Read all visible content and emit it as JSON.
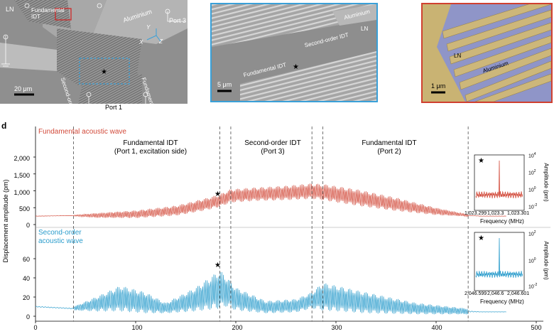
{
  "top_panels": {
    "sem_left": {
      "labels": {
        "ln": "LN",
        "fundamental_idt": "Fundamental\nIDT",
        "second_order_idt": "Second-order IDT",
        "fundamental_idt_right": "Fundamental IDT",
        "aluminium": "Aluminium",
        "port3": "Port 3",
        "port1": "Port 1",
        "axis_x": "X",
        "axis_y": "Y",
        "axis_z": "Z"
      },
      "scalebar": "20 μm"
    },
    "sem_middle": {
      "labels": {
        "aluminium": "Aluminium",
        "ln": "LN",
        "second_order_idt": "Second-order IDT",
        "fundamental_idt": "Fundamental IDT"
      },
      "scalebar": "5 μm",
      "border_color": "#3aa0d8"
    },
    "sem_right": {
      "labels": {
        "ln": "LN",
        "aluminium": "Aluminium"
      },
      "scalebar": "1 μm",
      "border_color": "#d04030"
    }
  },
  "panel_label": "d",
  "chart": {
    "y_axis_label": "Displacement amplitude (pm)",
    "top_series_label": "Fundamental acoustic wave",
    "top_series_color": "#d24a3a",
    "bottom_series_label": "Second-order\nacoustic wave",
    "bottom_series_color": "#2a9ccc",
    "region_labels": [
      {
        "name": "Fundamental IDT",
        "sub": "(Port 1, excitation side)"
      },
      {
        "name": "Second-order IDT",
        "sub": "(Port 3)"
      },
      {
        "name": "Fundamental IDT",
        "sub": "(Port 2)"
      }
    ],
    "top_y_ticks": [
      "2,000",
      "1,500",
      "1,000",
      "500",
      "0"
    ],
    "bottom_y_ticks": [
      "60",
      "40",
      "20",
      "0"
    ],
    "x_ticks": [
      "0",
      "100",
      "200",
      "300",
      "400",
      "500"
    ],
    "star": "★",
    "inset_top": {
      "x_ticks": [
        "1,023.299",
        "1,023.3",
        "1,023.301"
      ],
      "xlabel": "Frequency (MHz)",
      "ylabel": "Amplitude (pm)",
      "y_ticks": [
        "10",
        "10",
        "10",
        "10"
      ],
      "y_exps": [
        "4",
        "2",
        "0",
        "-2"
      ]
    },
    "inset_bottom": {
      "x_ticks": [
        "2,046.599",
        "2,046.6",
        "2,046.601"
      ],
      "xlabel": "Frequency (MHz)",
      "ylabel": "Amplitude (pm)",
      "y_ticks": [
        "10",
        "10",
        "10"
      ],
      "y_exps": [
        "2",
        "0",
        "-2"
      ]
    }
  },
  "chart_data": {
    "type": "line",
    "x_range": [
      0,
      500
    ],
    "dashed_lines_x": [
      38,
      184,
      195,
      276,
      287,
      432
    ],
    "series": [
      {
        "name": "Fundamental acoustic wave",
        "ylim": [
          0,
          2500
        ],
        "envelope_x": [
          0,
          38,
          60,
          100,
          140,
          170,
          184,
          195,
          220,
          250,
          276,
          287,
          320,
          360,
          400,
          432,
          445,
          470
        ],
        "envelope_max": [
          260,
          280,
          340,
          420,
          560,
          780,
          900,
          1050,
          1100,
          1150,
          1220,
          1200,
          1050,
          800,
          500,
          300,
          260,
          260
        ],
        "envelope_min": [
          240,
          250,
          200,
          190,
          260,
          420,
          520,
          650,
          700,
          720,
          760,
          720,
          560,
          400,
          280,
          240,
          240,
          240
        ],
        "star_x": 184,
        "star_y": 950
      },
      {
        "name": "Second-order acoustic wave",
        "ylim": [
          0,
          70
        ],
        "envelope_x": [
          0,
          38,
          60,
          85,
          110,
          130,
          160,
          184,
          190,
          200,
          230,
          260,
          276,
          287,
          330,
          380,
          432,
          445,
          470
        ],
        "envelope_max": [
          12,
          10,
          20,
          32,
          25,
          14,
          30,
          48,
          42,
          30,
          16,
          18,
          25,
          35,
          25,
          14,
          8,
          5,
          5
        ],
        "envelope_min": [
          8,
          6,
          5,
          5,
          3,
          3,
          5,
          8,
          10,
          6,
          3,
          4,
          8,
          6,
          3,
          2,
          2,
          4,
          4
        ],
        "star_x": 184,
        "star_y": 53
      }
    ]
  }
}
